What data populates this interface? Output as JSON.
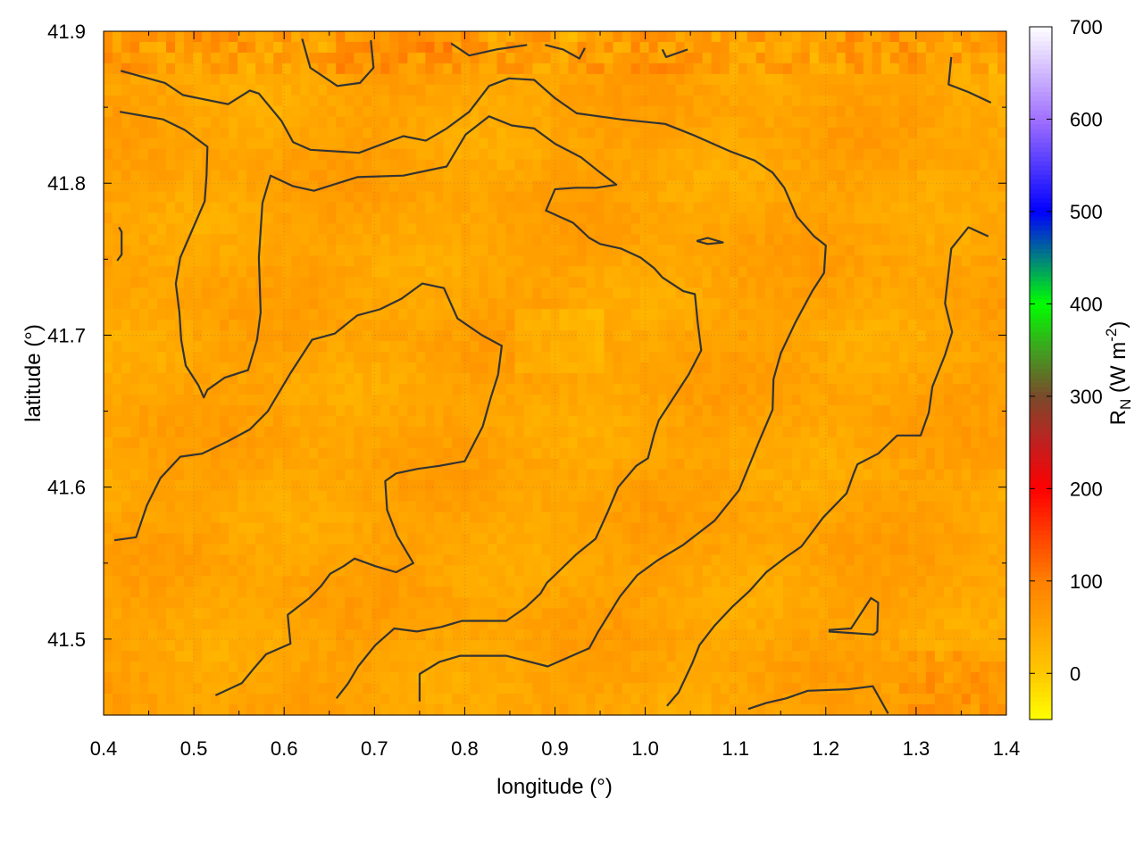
{
  "chart_data": {
    "type": "heatmap",
    "title": "",
    "xlabel": "longitude (°)",
    "ylabel": "latitude (°)",
    "colorbar_label": {
      "base": "R",
      "sub": "N",
      "unit_open": " (W m",
      "sup": "-2",
      "unit_close": ")"
    },
    "xlim": [
      0.4,
      1.4
    ],
    "ylim": [
      41.45,
      41.9
    ],
    "clim": [
      -50,
      700
    ],
    "xticks": [
      "0.4",
      "0.5",
      "0.6",
      "0.7",
      "0.8",
      "0.9",
      "1.0",
      "1.1",
      "1.2",
      "1.3",
      "1.4"
    ],
    "yticks": [
      "41.5",
      "41.6",
      "41.7",
      "41.8",
      "41.9"
    ],
    "cticks": [
      "0",
      "100",
      "200",
      "300",
      "400",
      "500",
      "600",
      "700"
    ],
    "grid": true,
    "palette": [
      {
        "v": -50,
        "c": "#ffff00"
      },
      {
        "v": 0,
        "c": "#ffc800"
      },
      {
        "v": 100,
        "c": "#ff8000"
      },
      {
        "v": 200,
        "c": "#ff0000"
      },
      {
        "v": 250,
        "c": "#c02020"
      },
      {
        "v": 300,
        "c": "#7a4a2a"
      },
      {
        "v": 350,
        "c": "#40a020"
      },
      {
        "v": 400,
        "c": "#00ff00"
      },
      {
        "v": 450,
        "c": "#008080"
      },
      {
        "v": 500,
        "c": "#0000ff"
      },
      {
        "v": 600,
        "c": "#a070ff"
      },
      {
        "v": 700,
        "c": "#ffffff"
      }
    ],
    "field_typical_range": [
      20,
      80
    ],
    "contour_color": "#333333",
    "contours": [
      [
        [
          0.419,
          41.874
        ],
        [
          0.468,
          41.866
        ],
        [
          0.488,
          41.858
        ],
        [
          0.538,
          41.852
        ],
        [
          0.562,
          41.861
        ],
        [
          0.572,
          41.859
        ],
        [
          0.597,
          41.841
        ],
        [
          0.61,
          41.827
        ],
        [
          0.629,
          41.822
        ],
        [
          0.683,
          41.82
        ],
        [
          0.732,
          41.831
        ],
        [
          0.757,
          41.828
        ],
        [
          0.78,
          41.836
        ],
        [
          0.805,
          41.847
        ],
        [
          0.827,
          41.864
        ],
        [
          0.849,
          41.869
        ],
        [
          0.877,
          41.868
        ],
        [
          0.9,
          41.856
        ],
        [
          0.924,
          41.846
        ],
        [
          0.973,
          41.842
        ],
        [
          1.022,
          41.839
        ],
        [
          1.052,
          41.832
        ],
        [
          1.094,
          41.821
        ],
        [
          1.121,
          41.815
        ],
        [
          1.141,
          41.807
        ],
        [
          1.154,
          41.797
        ],
        [
          1.168,
          41.778
        ],
        [
          1.187,
          41.765
        ],
        [
          1.2,
          41.759
        ],
        [
          1.198,
          41.741
        ],
        [
          1.185,
          41.729
        ],
        [
          1.166,
          41.708
        ],
        [
          1.15,
          41.688
        ],
        [
          1.142,
          41.671
        ],
        [
          1.141,
          41.651
        ],
        [
          1.126,
          41.63
        ],
        [
          1.104,
          41.598
        ],
        [
          1.077,
          41.578
        ],
        [
          1.042,
          41.562
        ],
        [
          1.014,
          41.552
        ],
        [
          0.991,
          41.542
        ],
        [
          0.972,
          41.528
        ],
        [
          0.948,
          41.505
        ],
        [
          0.938,
          41.494
        ],
        [
          0.915,
          41.488
        ],
        [
          0.892,
          41.482
        ],
        [
          0.846,
          41.489
        ],
        [
          0.795,
          41.489
        ],
        [
          0.772,
          41.485
        ],
        [
          0.75,
          41.477
        ],
        [
          0.75,
          41.459
        ]
      ],
      [
        [
          0.418,
          41.847
        ],
        [
          0.466,
          41.842
        ],
        [
          0.49,
          41.835
        ],
        [
          0.515,
          41.824
        ],
        [
          0.514,
          41.805
        ],
        [
          0.512,
          41.788
        ],
        [
          0.498,
          41.769
        ],
        [
          0.485,
          41.751
        ],
        [
          0.48,
          41.734
        ],
        [
          0.484,
          41.715
        ],
        [
          0.486,
          41.697
        ],
        [
          0.491,
          41.68
        ],
        [
          0.505,
          41.667
        ],
        [
          0.511,
          41.659
        ],
        [
          0.515,
          41.664
        ],
        [
          0.534,
          41.672
        ],
        [
          0.56,
          41.677
        ],
        [
          0.57,
          41.697
        ],
        [
          0.574,
          41.715
        ],
        [
          0.572,
          41.751
        ],
        [
          0.576,
          41.787
        ],
        [
          0.585,
          41.805
        ],
        [
          0.61,
          41.798
        ],
        [
          0.633,
          41.795
        ],
        [
          0.681,
          41.804
        ],
        [
          0.732,
          41.805
        ],
        [
          0.78,
          41.811
        ],
        [
          0.801,
          41.832
        ],
        [
          0.827,
          41.844
        ],
        [
          0.852,
          41.838
        ],
        [
          0.877,
          41.836
        ],
        [
          0.9,
          41.826
        ],
        [
          0.929,
          41.817
        ],
        [
          0.95,
          41.807
        ],
        [
          0.968,
          41.799
        ],
        [
          0.946,
          41.797
        ],
        [
          0.923,
          41.797
        ],
        [
          0.9,
          41.796
        ],
        [
          0.89,
          41.782
        ],
        [
          0.92,
          41.774
        ],
        [
          0.938,
          41.764
        ],
        [
          0.95,
          41.76
        ],
        [
          0.973,
          41.757
        ],
        [
          0.995,
          41.751
        ],
        [
          1.01,
          41.744
        ],
        [
          1.019,
          41.738
        ],
        [
          1.042,
          41.729
        ],
        [
          1.055,
          41.727
        ],
        [
          1.058,
          41.709
        ],
        [
          1.062,
          41.69
        ],
        [
          1.048,
          41.674
        ],
        [
          1.025,
          41.653
        ],
        [
          1.015,
          41.644
        ],
        [
          1.01,
          41.635
        ],
        [
          1.003,
          41.619
        ],
        [
          0.99,
          41.614
        ],
        [
          0.97,
          41.6
        ],
        [
          0.958,
          41.583
        ],
        [
          0.945,
          41.566
        ],
        [
          0.924,
          41.556
        ],
        [
          0.891,
          41.537
        ],
        [
          0.884,
          41.53
        ],
        [
          0.868,
          41.521
        ],
        [
          0.846,
          41.512
        ],
        [
          0.797,
          41.512
        ],
        [
          0.774,
          41.508
        ],
        [
          0.747,
          41.505
        ],
        [
          0.722,
          41.507
        ],
        [
          0.701,
          41.496
        ],
        [
          0.682,
          41.482
        ],
        [
          0.671,
          41.471
        ],
        [
          0.658,
          41.461
        ]
      ],
      [
        [
          0.412,
          41.565
        ],
        [
          0.436,
          41.567
        ],
        [
          0.448,
          41.588
        ],
        [
          0.463,
          41.606
        ],
        [
          0.485,
          41.62
        ],
        [
          0.509,
          41.622
        ],
        [
          0.537,
          41.63
        ],
        [
          0.562,
          41.638
        ],
        [
          0.582,
          41.65
        ],
        [
          0.607,
          41.675
        ],
        [
          0.631,
          41.697
        ],
        [
          0.656,
          41.701
        ],
        [
          0.681,
          41.713
        ],
        [
          0.706,
          41.717
        ],
        [
          0.73,
          41.724
        ],
        [
          0.753,
          41.734
        ],
        [
          0.777,
          41.731
        ],
        [
          0.792,
          41.711
        ],
        [
          0.819,
          41.7
        ],
        [
          0.841,
          41.693
        ],
        [
          0.837,
          41.674
        ],
        [
          0.829,
          41.659
        ],
        [
          0.82,
          41.64
        ],
        [
          0.8,
          41.617
        ],
        [
          0.772,
          41.614
        ],
        [
          0.748,
          41.612
        ],
        [
          0.724,
          41.609
        ],
        [
          0.712,
          41.604
        ],
        [
          0.714,
          41.585
        ],
        [
          0.725,
          41.568
        ],
        [
          0.743,
          41.55
        ],
        [
          0.724,
          41.544
        ],
        [
          0.701,
          41.548
        ],
        [
          0.678,
          41.553
        ],
        [
          0.666,
          41.548
        ],
        [
          0.651,
          41.543
        ],
        [
          0.641,
          41.535
        ],
        [
          0.628,
          41.527
        ],
        [
          0.604,
          41.516
        ],
        [
          0.607,
          41.497
        ],
        [
          0.58,
          41.49
        ],
        [
          0.567,
          41.481
        ],
        [
          0.553,
          41.471
        ],
        [
          0.524,
          41.463
        ]
      ],
      [
        [
          1.38,
          41.765
        ],
        [
          1.358,
          41.771
        ],
        [
          1.339,
          41.757
        ],
        [
          1.332,
          41.721
        ],
        [
          1.34,
          41.702
        ],
        [
          1.332,
          41.687
        ],
        [
          1.318,
          41.666
        ],
        [
          1.314,
          41.649
        ],
        [
          1.305,
          41.634
        ],
        [
          1.279,
          41.634
        ],
        [
          1.258,
          41.622
        ],
        [
          1.235,
          41.615
        ],
        [
          1.231,
          41.609
        ],
        [
          1.223,
          41.596
        ],
        [
          1.197,
          41.58
        ],
        [
          1.173,
          41.561
        ],
        [
          1.156,
          41.554
        ],
        [
          1.134,
          41.544
        ],
        [
          1.116,
          41.532
        ],
        [
          1.096,
          41.521
        ],
        [
          1.077,
          41.509
        ],
        [
          1.06,
          41.496
        ],
        [
          1.052,
          41.484
        ],
        [
          1.037,
          41.465
        ],
        [
          1.024,
          41.456
        ]
      ],
      [
        [
          1.114,
          41.454
        ],
        [
          1.134,
          41.458
        ],
        [
          1.156,
          41.461
        ],
        [
          1.18,
          41.466
        ],
        [
          1.225,
          41.467
        ],
        [
          1.252,
          41.469
        ],
        [
          1.269,
          41.451
        ]
      ],
      [
        [
          1.203,
          41.506
        ],
        [
          1.228,
          41.507
        ],
        [
          1.25,
          41.527
        ],
        [
          1.258,
          41.524
        ],
        [
          1.257,
          41.505
        ],
        [
          1.253,
          41.503
        ],
        [
          1.203,
          41.505
        ]
      ],
      [
        [
          0.62,
          41.895
        ],
        [
          0.629,
          41.876
        ],
        [
          0.659,
          41.864
        ],
        [
          0.684,
          41.866
        ],
        [
          0.699,
          41.876
        ],
        [
          0.696,
          41.894
        ]
      ],
      [
        [
          0.785,
          41.892
        ],
        [
          0.805,
          41.884
        ],
        [
          0.835,
          41.888
        ],
        [
          0.869,
          41.891
        ]
      ],
      [
        [
          0.889,
          41.891
        ],
        [
          0.909,
          41.888
        ],
        [
          0.927,
          41.882
        ],
        [
          0.933,
          41.889
        ]
      ],
      [
        [
          1.019,
          41.888
        ],
        [
          1.023,
          41.883
        ],
        [
          1.047,
          41.888
        ]
      ],
      [
        [
          1.339,
          41.883
        ],
        [
          1.336,
          41.865
        ],
        [
          1.358,
          41.86
        ],
        [
          1.383,
          41.853
        ]
      ],
      [
        [
          0.417,
          41.771
        ],
        [
          0.42,
          41.768
        ],
        [
          0.42,
          41.753
        ],
        [
          0.415,
          41.749
        ]
      ],
      [
        [
          1.057,
          41.762
        ],
        [
          1.069,
          41.764
        ],
        [
          1.086,
          41.761
        ],
        [
          1.069,
          41.76
        ],
        [
          1.057,
          41.762
        ]
      ]
    ]
  }
}
